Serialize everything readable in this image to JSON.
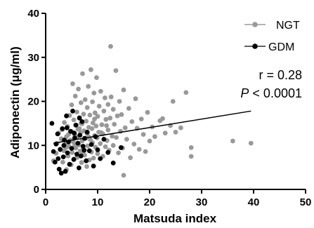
{
  "chart_data": {
    "type": "scatter",
    "xlabel": "Matsuda index",
    "ylabel": "Adiponectin (μg/ml)",
    "xlim": [
      0,
      50
    ],
    "ylim": [
      0,
      40
    ],
    "xticks": [
      0,
      10,
      20,
      30,
      40,
      50
    ],
    "yticks": [
      0,
      10,
      20,
      30,
      40
    ],
    "grid": false,
    "legend_position": "top-right",
    "annotation": {
      "r_text": "r = 0.28",
      "p_symbol": "P",
      "p_rest": " < 0.0001"
    },
    "trendline": {
      "x": [
        1.5,
        39.5
      ],
      "y": [
        10.5,
        17.8
      ]
    },
    "series": [
      {
        "name": "NGT",
        "color": "#999999",
        "marker": "filled-circle",
        "points": [
          [
            1.5,
            6.5
          ],
          [
            2.0,
            8.2
          ],
          [
            2.2,
            10.5
          ],
          [
            2.5,
            12.8
          ],
          [
            2.8,
            9.0
          ],
          [
            3.0,
            11.5
          ],
          [
            3.2,
            13.6
          ],
          [
            3.3,
            6.2
          ],
          [
            3.5,
            8.8
          ],
          [
            3.6,
            15.2
          ],
          [
            3.8,
            10.2
          ],
          [
            4.0,
            12.0
          ],
          [
            4.0,
            4.5
          ],
          [
            4.2,
            14.3
          ],
          [
            4.3,
            7.6
          ],
          [
            4.5,
            9.8
          ],
          [
            4.6,
            16.8
          ],
          [
            4.8,
            11.2
          ],
          [
            4.9,
            5.6
          ],
          [
            5.0,
            13.1
          ],
          [
            5.0,
            19.2
          ],
          [
            5.1,
            8.4
          ],
          [
            5.2,
            24.0
          ],
          [
            5.3,
            10.8
          ],
          [
            5.4,
            15.8
          ],
          [
            5.5,
            6.9
          ],
          [
            5.6,
            12.4
          ],
          [
            5.7,
            21.2
          ],
          [
            5.8,
            9.4
          ],
          [
            5.9,
            14.6
          ],
          [
            6.0,
            11.9
          ],
          [
            6.0,
            17.6
          ],
          [
            6.1,
            7.3
          ],
          [
            6.2,
            13.7
          ],
          [
            6.3,
            22.8
          ],
          [
            6.4,
            10.1
          ],
          [
            6.5,
            16.3
          ],
          [
            6.6,
            8.7
          ],
          [
            6.7,
            12.9
          ],
          [
            6.8,
            19.7
          ],
          [
            6.9,
            6.1
          ],
          [
            7.0,
            14.9
          ],
          [
            7.0,
            11.0
          ],
          [
            7.1,
            26.3
          ],
          [
            7.2,
            9.2
          ],
          [
            7.3,
            17.1
          ],
          [
            7.4,
            13.3
          ],
          [
            7.5,
            7.8
          ],
          [
            7.6,
            20.4
          ],
          [
            7.7,
            11.6
          ],
          [
            7.8,
            15.5
          ],
          [
            7.9,
            5.2
          ],
          [
            8.0,
            12.7
          ],
          [
            8.0,
            18.6
          ],
          [
            8.1,
            9.9
          ],
          [
            8.2,
            23.4
          ],
          [
            8.3,
            14.1
          ],
          [
            8.4,
            6.7
          ],
          [
            8.5,
            16.9
          ],
          [
            8.6,
            11.3
          ],
          [
            8.7,
            27.2
          ],
          [
            8.8,
            8.5
          ],
          [
            8.9,
            13.8
          ],
          [
            9.0,
            19.9
          ],
          [
            9.0,
            10.6
          ],
          [
            9.1,
            15.1
          ],
          [
            9.2,
            7.1
          ],
          [
            9.3,
            21.9
          ],
          [
            9.4,
            12.2
          ],
          [
            9.5,
            17.4
          ],
          [
            9.6,
            9.6
          ],
          [
            9.7,
            14.4
          ],
          [
            9.8,
            25.4
          ],
          [
            9.9,
            11.7
          ],
          [
            10.0,
            16.6
          ],
          [
            10.0,
            8.1
          ],
          [
            10.2,
            13.0
          ],
          [
            10.3,
            18.9
          ],
          [
            10.5,
            10.4
          ],
          [
            10.6,
            22.3
          ],
          [
            10.8,
            14.7
          ],
          [
            11.0,
            7.5
          ],
          [
            11.0,
            12.6
          ],
          [
            11.2,
            17.8
          ],
          [
            11.4,
            20.8
          ],
          [
            11.5,
            9.7
          ],
          [
            11.6,
            15.9
          ],
          [
            11.8,
            11.1
          ],
          [
            12.0,
            19.3
          ],
          [
            12.0,
            13.5
          ],
          [
            12.2,
            8.9
          ],
          [
            12.4,
            16.2
          ],
          [
            12.5,
            32.5
          ],
          [
            12.6,
            21.0
          ],
          [
            12.8,
            12.1
          ],
          [
            13.0,
            18.2
          ],
          [
            13.0,
            10.0
          ],
          [
            13.2,
            14.8
          ],
          [
            13.5,
            27.0
          ],
          [
            13.6,
            11.8
          ],
          [
            13.8,
            16.7
          ],
          [
            14.0,
            8.3
          ],
          [
            14.2,
            20.0
          ],
          [
            14.4,
            13.2
          ],
          [
            14.6,
            17.0
          ],
          [
            14.8,
            9.4
          ],
          [
            15.0,
            3.2
          ],
          [
            15.0,
            22.6
          ],
          [
            15.3,
            14.0
          ],
          [
            15.6,
            11.4
          ],
          [
            16.0,
            18.4
          ],
          [
            16.3,
            7.2
          ],
          [
            16.6,
            15.4
          ],
          [
            17.0,
            10.3
          ],
          [
            17.3,
            20.6
          ],
          [
            17.6,
            13.9
          ],
          [
            18.0,
            9.1
          ],
          [
            18.4,
            16.0
          ],
          [
            18.8,
            12.5
          ],
          [
            19.2,
            8.6
          ],
          [
            19.6,
            17.5
          ],
          [
            20.0,
            11.0
          ],
          [
            20.5,
            14.2
          ],
          [
            21.0,
            12.0
          ],
          [
            22.0,
            15.6
          ],
          [
            22.5,
            16.1
          ],
          [
            23.0,
            12.8
          ],
          [
            24.0,
            14.5
          ],
          [
            24.5,
            20.0
          ],
          [
            25.0,
            13.0
          ],
          [
            26.0,
            14.0
          ],
          [
            27.0,
            22.0
          ],
          [
            28.0,
            9.5
          ],
          [
            28.0,
            7.5
          ],
          [
            36.0,
            11.0
          ],
          [
            39.5,
            10.5
          ],
          [
            6.5,
            13.8
          ],
          [
            7.2,
            8.0
          ],
          [
            8.3,
            11.9
          ],
          [
            9.4,
            16.0
          ],
          [
            10.7,
            12.9
          ],
          [
            11.7,
            14.5
          ],
          [
            5.6,
            10.0
          ],
          [
            6.8,
            15.0
          ],
          [
            4.4,
            12.5
          ],
          [
            3.9,
            9.5
          ]
        ]
      },
      {
        "name": "GDM",
        "color": "#000000",
        "marker": "filled-circle",
        "points": [
          [
            1.2,
            15.0
          ],
          [
            1.5,
            8.6
          ],
          [
            1.8,
            6.2
          ],
          [
            2.0,
            10.3
          ],
          [
            2.3,
            12.6
          ],
          [
            2.6,
            4.6
          ],
          [
            2.8,
            9.1
          ],
          [
            3.0,
            3.7
          ],
          [
            3.2,
            13.8
          ],
          [
            3.4,
            7.4
          ],
          [
            3.6,
            11.2
          ],
          [
            3.8,
            4.1
          ],
          [
            4.0,
            16.7
          ],
          [
            4.2,
            8.3
          ],
          [
            4.4,
            10.8
          ],
          [
            4.6,
            5.7
          ],
          [
            4.8,
            13.2
          ],
          [
            5.0,
            9.3
          ],
          [
            5.2,
            17.8
          ],
          [
            5.4,
            6.8
          ],
          [
            5.6,
            11.7
          ],
          [
            5.8,
            14.6
          ],
          [
            6.0,
            8.0
          ],
          [
            6.2,
            10.5
          ],
          [
            6.4,
            4.9
          ],
          [
            6.6,
            12.3
          ],
          [
            6.8,
            7.6
          ],
          [
            7.0,
            15.4
          ],
          [
            7.2,
            9.8
          ],
          [
            7.5,
            11.6
          ],
          [
            7.8,
            6.5
          ],
          [
            8.0,
            13.0
          ],
          [
            8.4,
            8.8
          ],
          [
            8.8,
            10.2
          ],
          [
            9.2,
            5.3
          ],
          [
            9.6,
            12.0
          ],
          [
            10.0,
            9.0
          ],
          [
            10.5,
            7.0
          ],
          [
            11.2,
            11.4
          ],
          [
            12.0,
            8.4
          ],
          [
            13.0,
            6.0
          ],
          [
            14.5,
            9.5
          ],
          [
            3.5,
            10.0
          ],
          [
            5.5,
            12.8
          ],
          [
            6.5,
            16.2
          ],
          [
            7.4,
            8.9
          ],
          [
            2.4,
            7.0
          ],
          [
            4.1,
            14.0
          ]
        ]
      }
    ]
  }
}
